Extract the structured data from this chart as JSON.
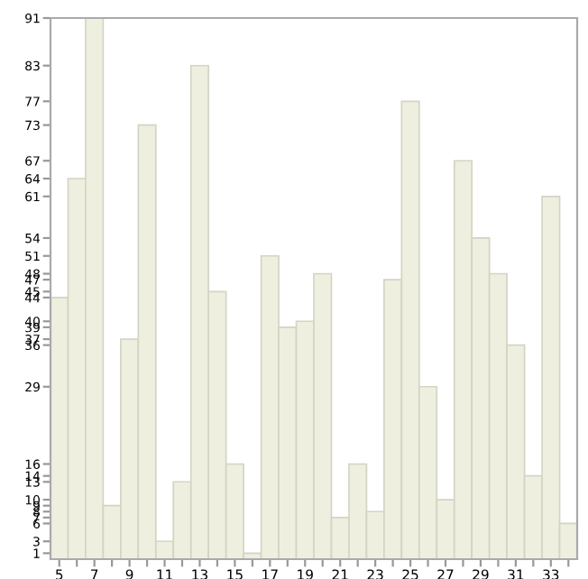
{
  "chart_data": {
    "type": "bar",
    "categories": [
      "5",
      null,
      "7",
      null,
      "9",
      null,
      "11",
      null,
      "13",
      null,
      "15",
      null,
      "17",
      null,
      "19",
      null,
      "21",
      null,
      "23",
      null,
      "25",
      null,
      "27",
      null,
      "29",
      null,
      "31",
      null,
      "33",
      null
    ],
    "values": [
      44,
      64,
      91,
      9,
      37,
      73,
      3,
      13,
      83,
      45,
      16,
      1,
      51,
      39,
      40,
      48,
      7,
      16,
      8,
      47,
      77,
      29,
      10,
      67,
      54,
      48,
      36,
      14,
      61,
      6
    ],
    "color": "#efefe0",
    "ylim": [
      0,
      91
    ],
    "yticks": [
      1,
      3,
      6,
      7,
      8,
      9,
      10,
      13,
      14,
      16,
      29,
      36,
      37,
      39,
      40,
      44,
      45,
      47,
      48,
      51,
      54,
      61,
      64,
      67,
      73,
      77,
      83,
      91
    ],
    "grid": false,
    "legend": false
  }
}
